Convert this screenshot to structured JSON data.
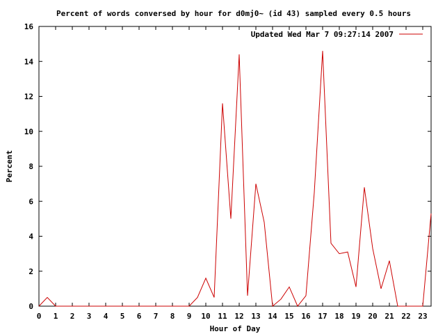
{
  "chart_data": {
    "type": "line",
    "title": "Percent of words conversed by hour for d0mj0~ (id 43) sampled every 0.5 hours",
    "xlabel": "Hour of Day",
    "ylabel": "Percent",
    "xlim": [
      0,
      23.5
    ],
    "ylim": [
      0,
      16
    ],
    "xticks": [
      "0",
      "1",
      "2",
      "3",
      "4",
      "5",
      "6",
      "7",
      "8",
      "9",
      "10",
      "11",
      "12",
      "13",
      "14",
      "15",
      "16",
      "17",
      "18",
      "19",
      "20",
      "21",
      "22",
      "23"
    ],
    "yticks": [
      "0",
      "2",
      "4",
      "6",
      "8",
      "10",
      "12",
      "14",
      "16"
    ],
    "legend_position": "top-right",
    "grid": false,
    "series": [
      {
        "name": "Updated Wed Mar  7 09:27:14 2007",
        "color": "#cc0000",
        "x": [
          0,
          0.5,
          1,
          1.5,
          2,
          2.5,
          3,
          3.5,
          4,
          4.5,
          5,
          5.5,
          6,
          6.5,
          7,
          7.5,
          8,
          8.5,
          9,
          9.5,
          10,
          10.5,
          11,
          11.5,
          12,
          12.5,
          13,
          13.5,
          14,
          14.5,
          15,
          15.5,
          16,
          16.5,
          17,
          17.5,
          18,
          18.5,
          19,
          19.5,
          20,
          20.5,
          21,
          21.5,
          22,
          22.5,
          23,
          23.5
        ],
        "values": [
          0,
          0.5,
          0,
          0,
          0,
          0,
          0,
          0,
          0,
          0,
          0,
          0,
          0,
          0,
          0,
          0,
          0,
          0,
          0,
          0.5,
          1.6,
          0.5,
          11.6,
          5,
          14.4,
          0.6,
          7,
          4.8,
          0,
          0.4,
          1.1,
          0,
          0.6,
          6.5,
          14.6,
          3.6,
          3,
          3.1,
          1.1,
          6.8,
          3.3,
          1,
          2.6,
          0,
          0,
          0,
          0,
          5.3
        ]
      }
    ]
  }
}
